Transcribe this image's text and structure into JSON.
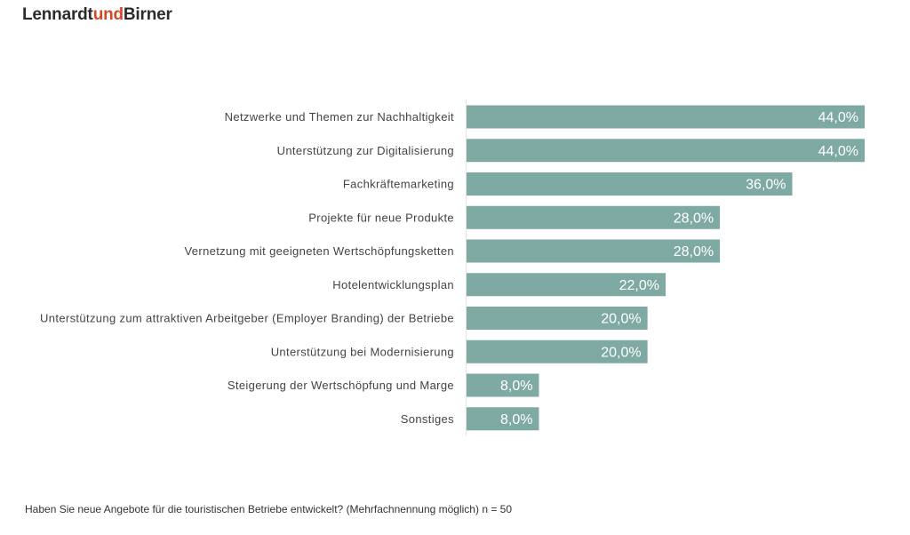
{
  "logo": {
    "part1": "Lennardt",
    "part2": "und",
    "part3": "Birner",
    "text_color": "#2b2b2b",
    "accent_color": "#d4482a"
  },
  "chart_data": {
    "type": "bar",
    "orientation": "horizontal",
    "categories": [
      "Netzwerke und Themen zur Nachhaltigkeit",
      "Unterstützung zur Digitalisierung",
      "Fachkräftemarketing",
      "Projekte für neue Produkte",
      "Vernetzung mit geeigneten Wertschöpfungsketten",
      "Hotelentwicklungsplan",
      "Unterstützung zum attraktiven Arbeitgeber (Employer Branding) der Betriebe",
      "Unterstützung bei Modernisierung",
      "Steigerung der Wertschöpfung und Marge",
      "Sonstiges"
    ],
    "values": [
      44.0,
      44.0,
      36.0,
      28.0,
      28.0,
      22.0,
      20.0,
      20.0,
      8.0,
      8.0
    ],
    "data_labels": [
      "44,0%",
      "44,0%",
      "36,0%",
      "28,0%",
      "28,0%",
      "22,0%",
      "20,0%",
      "20,0%",
      "8,0%",
      "8,0%"
    ],
    "xlim": [
      0,
      44
    ],
    "grid": false,
    "bar_color": "#7faaa3",
    "label_color": "#444444",
    "data_label_color": "#ffffff"
  },
  "footnote": "Haben Sie neue Angebote für die touristischen Betriebe entwickelt? (Mehrfachnennung möglich) n = 50"
}
